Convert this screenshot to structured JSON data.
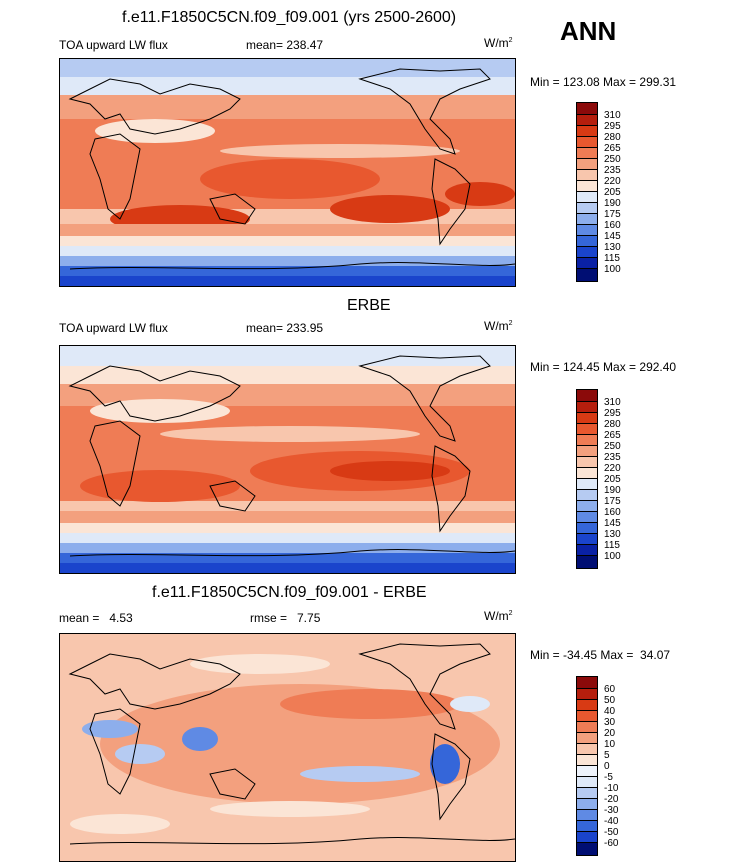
{
  "season": "ANN",
  "panels": [
    {
      "title": "f.e11.F1850C5CN.f09_f09.001 (yrs 2500-2600)",
      "left_label": "TOA upward LW flux",
      "center_label": "mean= 238.47",
      "units": "W/m",
      "units_sup": "2",
      "minmax": "Min = 123.08 Max = 299.31",
      "colorbar_levels": [
        "310",
        "295",
        "280",
        "265",
        "250",
        "235",
        "220",
        "205",
        "190",
        "175",
        "160",
        "145",
        "130",
        "115",
        "100"
      ]
    },
    {
      "title": "ERBE",
      "left_label": "TOA upward LW flux",
      "center_label": "mean= 233.95",
      "units": "W/m",
      "units_sup": "2",
      "minmax": "Min = 124.45 Max = 292.40",
      "colorbar_levels": [
        "310",
        "295",
        "280",
        "265",
        "250",
        "235",
        "220",
        "205",
        "190",
        "175",
        "160",
        "145",
        "130",
        "115",
        "100"
      ]
    },
    {
      "title": "f.e11.F1850C5CN.f09_f09.001 - ERBE",
      "left_label": "mean =   4.53",
      "center_label": "rmse =   7.75",
      "units": "W/m",
      "units_sup": "2",
      "minmax": "Min = -34.45 Max =  34.07",
      "colorbar_levels": [
        "60",
        "50",
        "40",
        "30",
        "20",
        "10",
        "5",
        "0",
        "-5",
        "-10",
        "-20",
        "-30",
        "-40",
        "-50",
        "-60"
      ]
    }
  ],
  "colors": {
    "abs_scale": [
      "#8b0a0a",
      "#b51e0d",
      "#d83a14",
      "#e8582f",
      "#ef7c55",
      "#f3a07e",
      "#f8c6ad",
      "#fbe5d6",
      "#dfe9f8",
      "#b6cbf2",
      "#8daeec",
      "#5f8ae4",
      "#3566d9",
      "#1a44cc",
      "#0a21a5",
      "#000e73"
    ],
    "diff_scale": [
      "#8b0a0a",
      "#b51e0d",
      "#d83a14",
      "#e8582f",
      "#ef7c55",
      "#f3a07e",
      "#f8c6ad",
      "#fbe5d6",
      "#eef3fb",
      "#dfe9f8",
      "#b6cbf2",
      "#8daeec",
      "#5f8ae4",
      "#3566d9",
      "#1a44cc",
      "#000e73"
    ],
    "land": "#000000"
  }
}
